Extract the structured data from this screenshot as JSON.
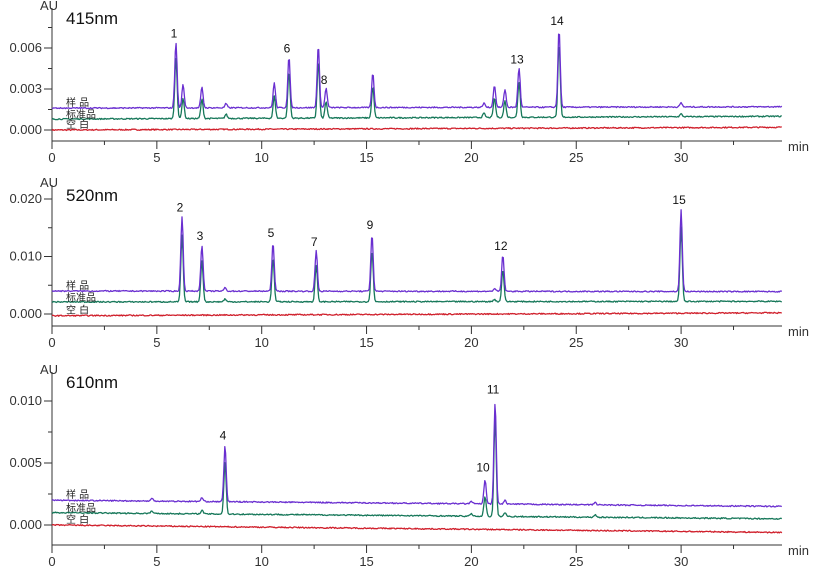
{
  "chart_data": [
    {
      "type": "line",
      "title": "415nm",
      "ylabel": "AU",
      "xlabel": "min",
      "xlim": [
        0,
        34.8
      ],
      "x_ticks": [
        0,
        5,
        10,
        15,
        20,
        25,
        30
      ],
      "y_ticks": [
        "0.000",
        "0.003",
        "0.006"
      ],
      "y_minor": [
        0.0015,
        0.0045,
        0.0075
      ],
      "series_baselines": {
        "sample": [
          0.0016,
          0.0017
        ],
        "standard": [
          0.0008,
          0.001
        ],
        "blank": [
          0.0,
          0.0002
        ]
      },
      "peaks": [
        {
          "label": "1",
          "rt": 5.91,
          "sample": 0.0048,
          "standard": 0.0045
        },
        {
          "label": "",
          "rt": 6.25,
          "sample": 0.0017,
          "standard": 0.0015
        },
        {
          "label": "",
          "rt": 7.15,
          "sample": 0.0015,
          "standard": 0.0014
        },
        {
          "label": "",
          "rt": 8.3,
          "sample": 0.0003,
          "standard": 0.0003
        },
        {
          "label": "",
          "rt": 10.6,
          "sample": 0.0018,
          "standard": 0.0016
        },
        {
          "label": "6",
          "rt": 11.3,
          "sample": 0.0037,
          "standard": 0.0034
        },
        {
          "label": "",
          "rt": 12.7,
          "sample": 0.0045,
          "standard": 0.0042
        },
        {
          "label": "8",
          "rt": 13.07,
          "sample": 0.0014,
          "standard": 0.0012
        },
        {
          "label": "",
          "rt": 15.3,
          "sample": 0.0025,
          "standard": 0.0023
        },
        {
          "label": "",
          "rt": 20.6,
          "sample": 0.0003,
          "standard": 0.0003
        },
        {
          "label": "",
          "rt": 21.1,
          "sample": 0.0016,
          "standard": 0.0014
        },
        {
          "label": "",
          "rt": 21.6,
          "sample": 0.0013,
          "standard": 0.0012
        },
        {
          "label": "13",
          "rt": 22.27,
          "sample": 0.0029,
          "standard": 0.0026
        },
        {
          "label": "14",
          "rt": 24.18,
          "sample": 0.0057,
          "standard": 0.0054
        },
        {
          "label": "",
          "rt": 30.0,
          "sample": 0.0003,
          "standard": 0.0002
        }
      ]
    },
    {
      "type": "line",
      "title": "520nm",
      "ylabel": "AU",
      "xlabel": "min",
      "xlim": [
        0,
        34.8
      ],
      "x_ticks": [
        0,
        5,
        10,
        15,
        20,
        25,
        30
      ],
      "y_ticks": [
        "0.000",
        "0.010",
        "0.020"
      ],
      "y_minor": [
        0.005,
        0.015
      ],
      "series_baselines": {
        "sample": [
          0.004,
          0.0039
        ],
        "standard": [
          0.0021,
          0.0022
        ],
        "blank": [
          -0.0003,
          0.0002
        ]
      },
      "peaks": [
        {
          "label": "2",
          "rt": 6.2,
          "sample": 0.013,
          "standard": 0.0115
        },
        {
          "label": "3",
          "rt": 7.15,
          "sample": 0.008,
          "standard": 0.0072
        },
        {
          "label": "",
          "rt": 8.25,
          "sample": 0.0006,
          "standard": 0.0005
        },
        {
          "label": "5",
          "rt": 10.54,
          "sample": 0.0085,
          "standard": 0.0077
        },
        {
          "label": "7",
          "rt": 12.6,
          "sample": 0.007,
          "standard": 0.0063
        },
        {
          "label": "9",
          "rt": 15.26,
          "sample": 0.0099,
          "standard": 0.009
        },
        {
          "label": "",
          "rt": 21.1,
          "sample": 0.0005,
          "standard": 0.0004
        },
        {
          "label": "12",
          "rt": 21.5,
          "sample": 0.0063,
          "standard": 0.0056
        },
        {
          "label": "15",
          "rt": 30.0,
          "sample": 0.0143,
          "standard": 0.013
        }
      ]
    },
    {
      "type": "line",
      "title": "610nm",
      "ylabel": "AU",
      "xlabel": "min",
      "xlim": [
        0,
        34.8
      ],
      "x_ticks": [
        0,
        5,
        10,
        15,
        20,
        25,
        30
      ],
      "y_ticks": [
        "0.000",
        "0.005",
        "0.010"
      ],
      "y_minor": [
        0.0025,
        0.0075
      ],
      "series_baselines": {
        "sample": [
          0.002,
          0.0015
        ],
        "standard": [
          0.001,
          0.0005
        ],
        "blank": [
          0.0,
          -0.0006
        ]
      },
      "peaks": [
        {
          "label": "",
          "rt": 4.77,
          "sample": 0.0002,
          "standard": 0.0002
        },
        {
          "label": "",
          "rt": 7.15,
          "sample": 0.0003,
          "standard": 0.0003
        },
        {
          "label": "4",
          "rt": 8.25,
          "sample": 0.0045,
          "standard": 0.0042
        },
        {
          "label": "",
          "rt": 20.0,
          "sample": 0.0002,
          "standard": 0.0002
        },
        {
          "label": "10",
          "rt": 20.65,
          "sample": 0.0019,
          "standard": 0.0016
        },
        {
          "label": "11",
          "rt": 21.13,
          "sample": 0.0082,
          "standard": 0.0079
        },
        {
          "label": "",
          "rt": 21.6,
          "sample": 0.0003,
          "standard": 0.0003
        },
        {
          "label": "",
          "rt": 25.9,
          "sample": 0.0002,
          "standard": 0.0002
        }
      ]
    }
  ],
  "legend": {
    "sample": "样 品",
    "standard": "标准品",
    "blank": "空 白"
  },
  "colors": {
    "sample": "#6a2fd0",
    "standard": "#17785a",
    "blank": "#d0202c",
    "axis": "#333333"
  }
}
